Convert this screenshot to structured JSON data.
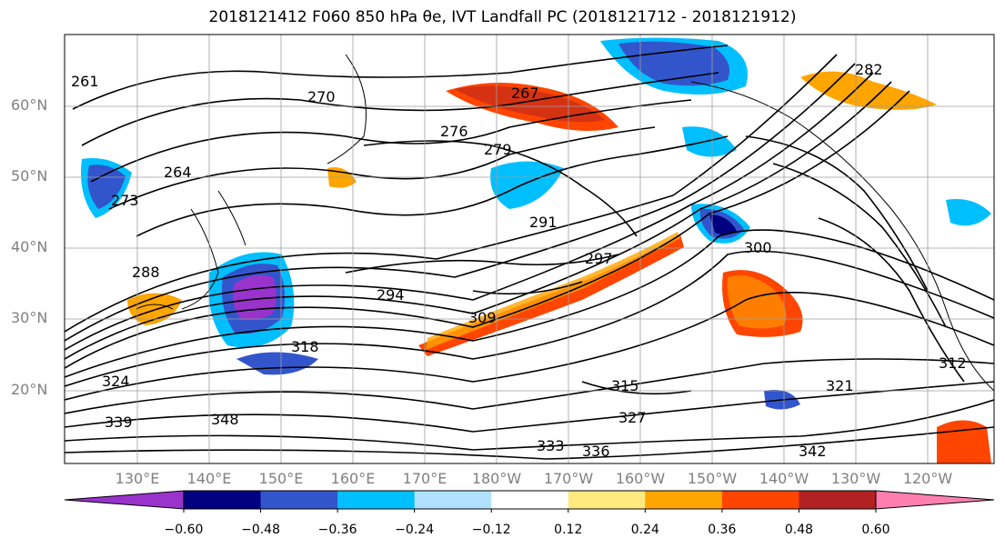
{
  "title": "2018121412 F060 850 hPa θe, IVT Landfall PC (2018121712 - 2018121912)",
  "map": {
    "lat_labels": [
      "60°N",
      "50°N",
      "40°N",
      "30°N",
      "20°N"
    ],
    "lon_labels": [
      "130°E",
      "140°E",
      "150°E",
      "160°E",
      "170°E",
      "180°W",
      "170°W",
      "160°W",
      "150°W",
      "140°W",
      "130°W",
      "120°W"
    ],
    "contour_labels": [
      "261",
      "264",
      "267",
      "270",
      "273",
      "276",
      "279",
      "282",
      "288",
      "291",
      "294",
      "297",
      "300",
      "309",
      "312",
      "315",
      "318",
      "321",
      "324",
      "327",
      "333",
      "336",
      "339",
      "342",
      "348"
    ]
  },
  "colorbar": {
    "colors": [
      "#9933cc",
      "#000080",
      "#3355cc",
      "#00bfff",
      "#b0e2ff",
      "#ffffff",
      "#ffea80",
      "#ffa500",
      "#ff4500",
      "#b22222",
      "#ff80b0"
    ],
    "tick_labels": [
      "−0.60",
      "−0.48",
      "−0.36",
      "−0.24",
      "−0.12",
      "0.12",
      "0.24",
      "0.36",
      "0.48",
      "0.60"
    ]
  }
}
